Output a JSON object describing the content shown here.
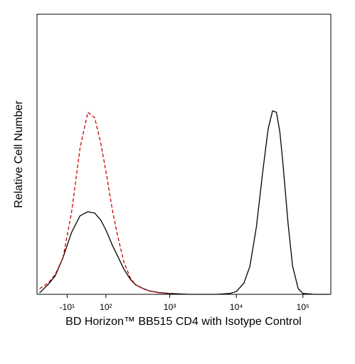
{
  "chart_data": {
    "type": "line",
    "xlabel": "BD Horizon™ BB515 CD4  with Isotype Control",
    "ylabel": "Relative Cell Number",
    "xscale": "biexponential",
    "xlim": [
      -100,
      262144
    ],
    "ylim": [
      0,
      100
    ],
    "xticks": [
      {
        "value": -10,
        "label": "-10¹"
      },
      {
        "value": 100,
        "label": "10²"
      },
      {
        "value": 1000,
        "label": "10³"
      },
      {
        "value": 10000,
        "label": "10⁴"
      },
      {
        "value": 100000,
        "label": "10⁵"
      }
    ],
    "x": [
      -90,
      -60,
      -40,
      -20,
      0,
      20,
      40,
      60,
      80,
      100,
      130,
      160,
      200,
      250,
      300,
      400,
      500,
      700,
      1000,
      2000,
      5000,
      8000,
      10000,
      13000,
      16000,
      20000,
      25000,
      30000,
      35000,
      40000,
      45000,
      50000,
      60000,
      70000,
      85000,
      100000,
      150000,
      250000
    ],
    "series": [
      {
        "color": "#000000",
        "dash": "solid",
        "values": [
          0.5,
          3.5,
          6.5,
          13,
          22,
          28,
          29.5,
          29,
          26.5,
          23,
          17.5,
          13.5,
          9,
          5.5,
          3.5,
          2,
          1.2,
          0.6,
          0.3,
          0,
          0,
          0.3,
          1,
          4,
          10,
          24,
          44,
          59,
          65.5,
          65,
          58,
          47,
          25,
          10,
          2,
          0.3,
          0,
          0
        ]
      },
      {
        "color": "#cc0000",
        "dash": "dashed",
        "values": [
          2,
          4,
          7,
          13,
          29,
          52,
          65,
          63,
          54,
          44,
          30,
          20.5,
          11.5,
          6,
          3.5,
          2,
          1.2,
          0.5,
          0.2,
          null,
          null,
          null,
          null,
          null,
          null,
          null,
          null,
          null,
          null,
          null,
          null,
          null,
          null,
          null,
          null,
          null,
          null,
          null
        ]
      }
    ]
  }
}
